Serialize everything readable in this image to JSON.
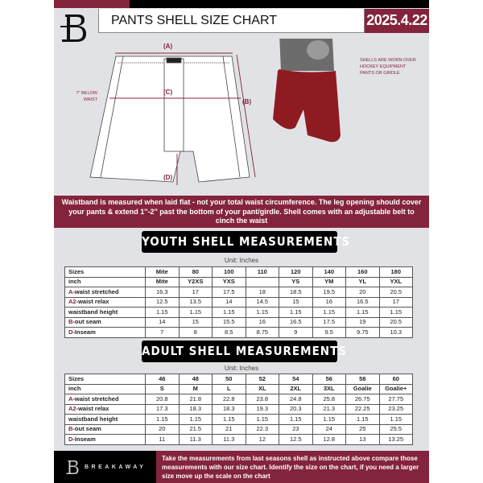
{
  "header": {
    "title": "PANTS SHELL SIZE CHART",
    "date": "2025.4.22"
  },
  "diagram": {
    "labels": {
      "a": "(A)",
      "b": "(B)",
      "c": "(C)",
      "d": "(D)"
    },
    "below_waist": "7'' BELOW WAIST",
    "note": "SHELLS ARE WORN OVER HOCKEY EQUIPMENT PANTS OR GIRDLE"
  },
  "banner": "Waistband is measured when laid flat - not your total waist circumference. The leg opening should cover your pants & extend 1''-2'' past the bottom of your pant/girdle. Shell comes with an adjustable belt to cinch the waist",
  "youth": {
    "title": "YOUTH SHELL MEASUREMENTS",
    "unit": "Unit: Inches",
    "rows": [
      {
        "p": "",
        "l": "Sizes",
        "v": [
          "Mite",
          "80",
          "100",
          "110",
          "120",
          "140",
          "160",
          "180"
        ]
      },
      {
        "p": "",
        "l": "inch",
        "v": [
          "Mite",
          "Y2XS",
          "YXS",
          "",
          "YS",
          "YM",
          "YL",
          "YXL"
        ]
      },
      {
        "p": "A",
        "l": "-waist stretched",
        "v": [
          "16.3",
          "17",
          "17.5",
          "18",
          "18.5",
          "19.5",
          "20",
          "20.5"
        ]
      },
      {
        "p": "A2",
        "l": "-waist relax",
        "v": [
          "12.5",
          "13.5",
          "14",
          "14.5",
          "15",
          "16",
          "16.5",
          "17"
        ]
      },
      {
        "p": "",
        "l": "waistband height",
        "v": [
          "1.15",
          "1.15",
          "1.15",
          "1.15",
          "1.15",
          "1.15",
          "1.15",
          "1.15"
        ]
      },
      {
        "p": "B",
        "l": "-out seam",
        "v": [
          "14",
          "15",
          "15.5",
          "16",
          "16.5",
          "17.5",
          "19",
          "20.5"
        ]
      },
      {
        "p": "D",
        "l": "-Inseam",
        "v": [
          "7",
          "8",
          "8.5",
          "8.75",
          "9",
          "9.5",
          "9.75",
          "10.3"
        ]
      }
    ]
  },
  "adult": {
    "title": "ADULT SHELL MEASUREMENTS",
    "unit": "Unit: Inches",
    "rows": [
      {
        "p": "",
        "l": "Sizes",
        "v": [
          "46",
          "48",
          "50",
          "52",
          "54",
          "56",
          "58",
          "60"
        ]
      },
      {
        "p": "",
        "l": "inch",
        "v": [
          "S",
          "M",
          "L",
          "XL",
          "2XL",
          "3XL",
          "Goalie",
          "Goalie+"
        ]
      },
      {
        "p": "A",
        "l": "-waist stretched",
        "v": [
          "20.8",
          "21.8",
          "22.8",
          "23.8",
          "24.8",
          "25.8",
          "26.75",
          "27.75"
        ]
      },
      {
        "p": "A2",
        "l": "-waist relax",
        "v": [
          "17.3",
          "18.3",
          "18.3",
          "19.3",
          "20.3",
          "21.3",
          "22.25",
          "23.25"
        ]
      },
      {
        "p": "",
        "l": "waistband height",
        "v": [
          "1.15",
          "1.15",
          "1.15",
          "1.15",
          "1.15",
          "1.15",
          "1.15",
          "1.15"
        ]
      },
      {
        "p": "B",
        "l": "-out seam",
        "v": [
          "20",
          "21.5",
          "21",
          "22.3",
          "23",
          "24",
          "25",
          "25.5"
        ]
      },
      {
        "p": "D",
        "l": "-Inseam",
        "v": [
          "11",
          "11.3",
          "11.3",
          "12",
          "12.5",
          "12.8",
          "13",
          "13.25"
        ]
      }
    ]
  },
  "footer": {
    "brand": "BREAKAWAY",
    "text": "Take the measurements from last seasons shell as instructed above compare those measurements  with our size chart. Identify the size on the chart, if you need a larger size move up the scale on the chart"
  },
  "colors": {
    "accent": "#84243c",
    "background": "#e1e2e6"
  }
}
